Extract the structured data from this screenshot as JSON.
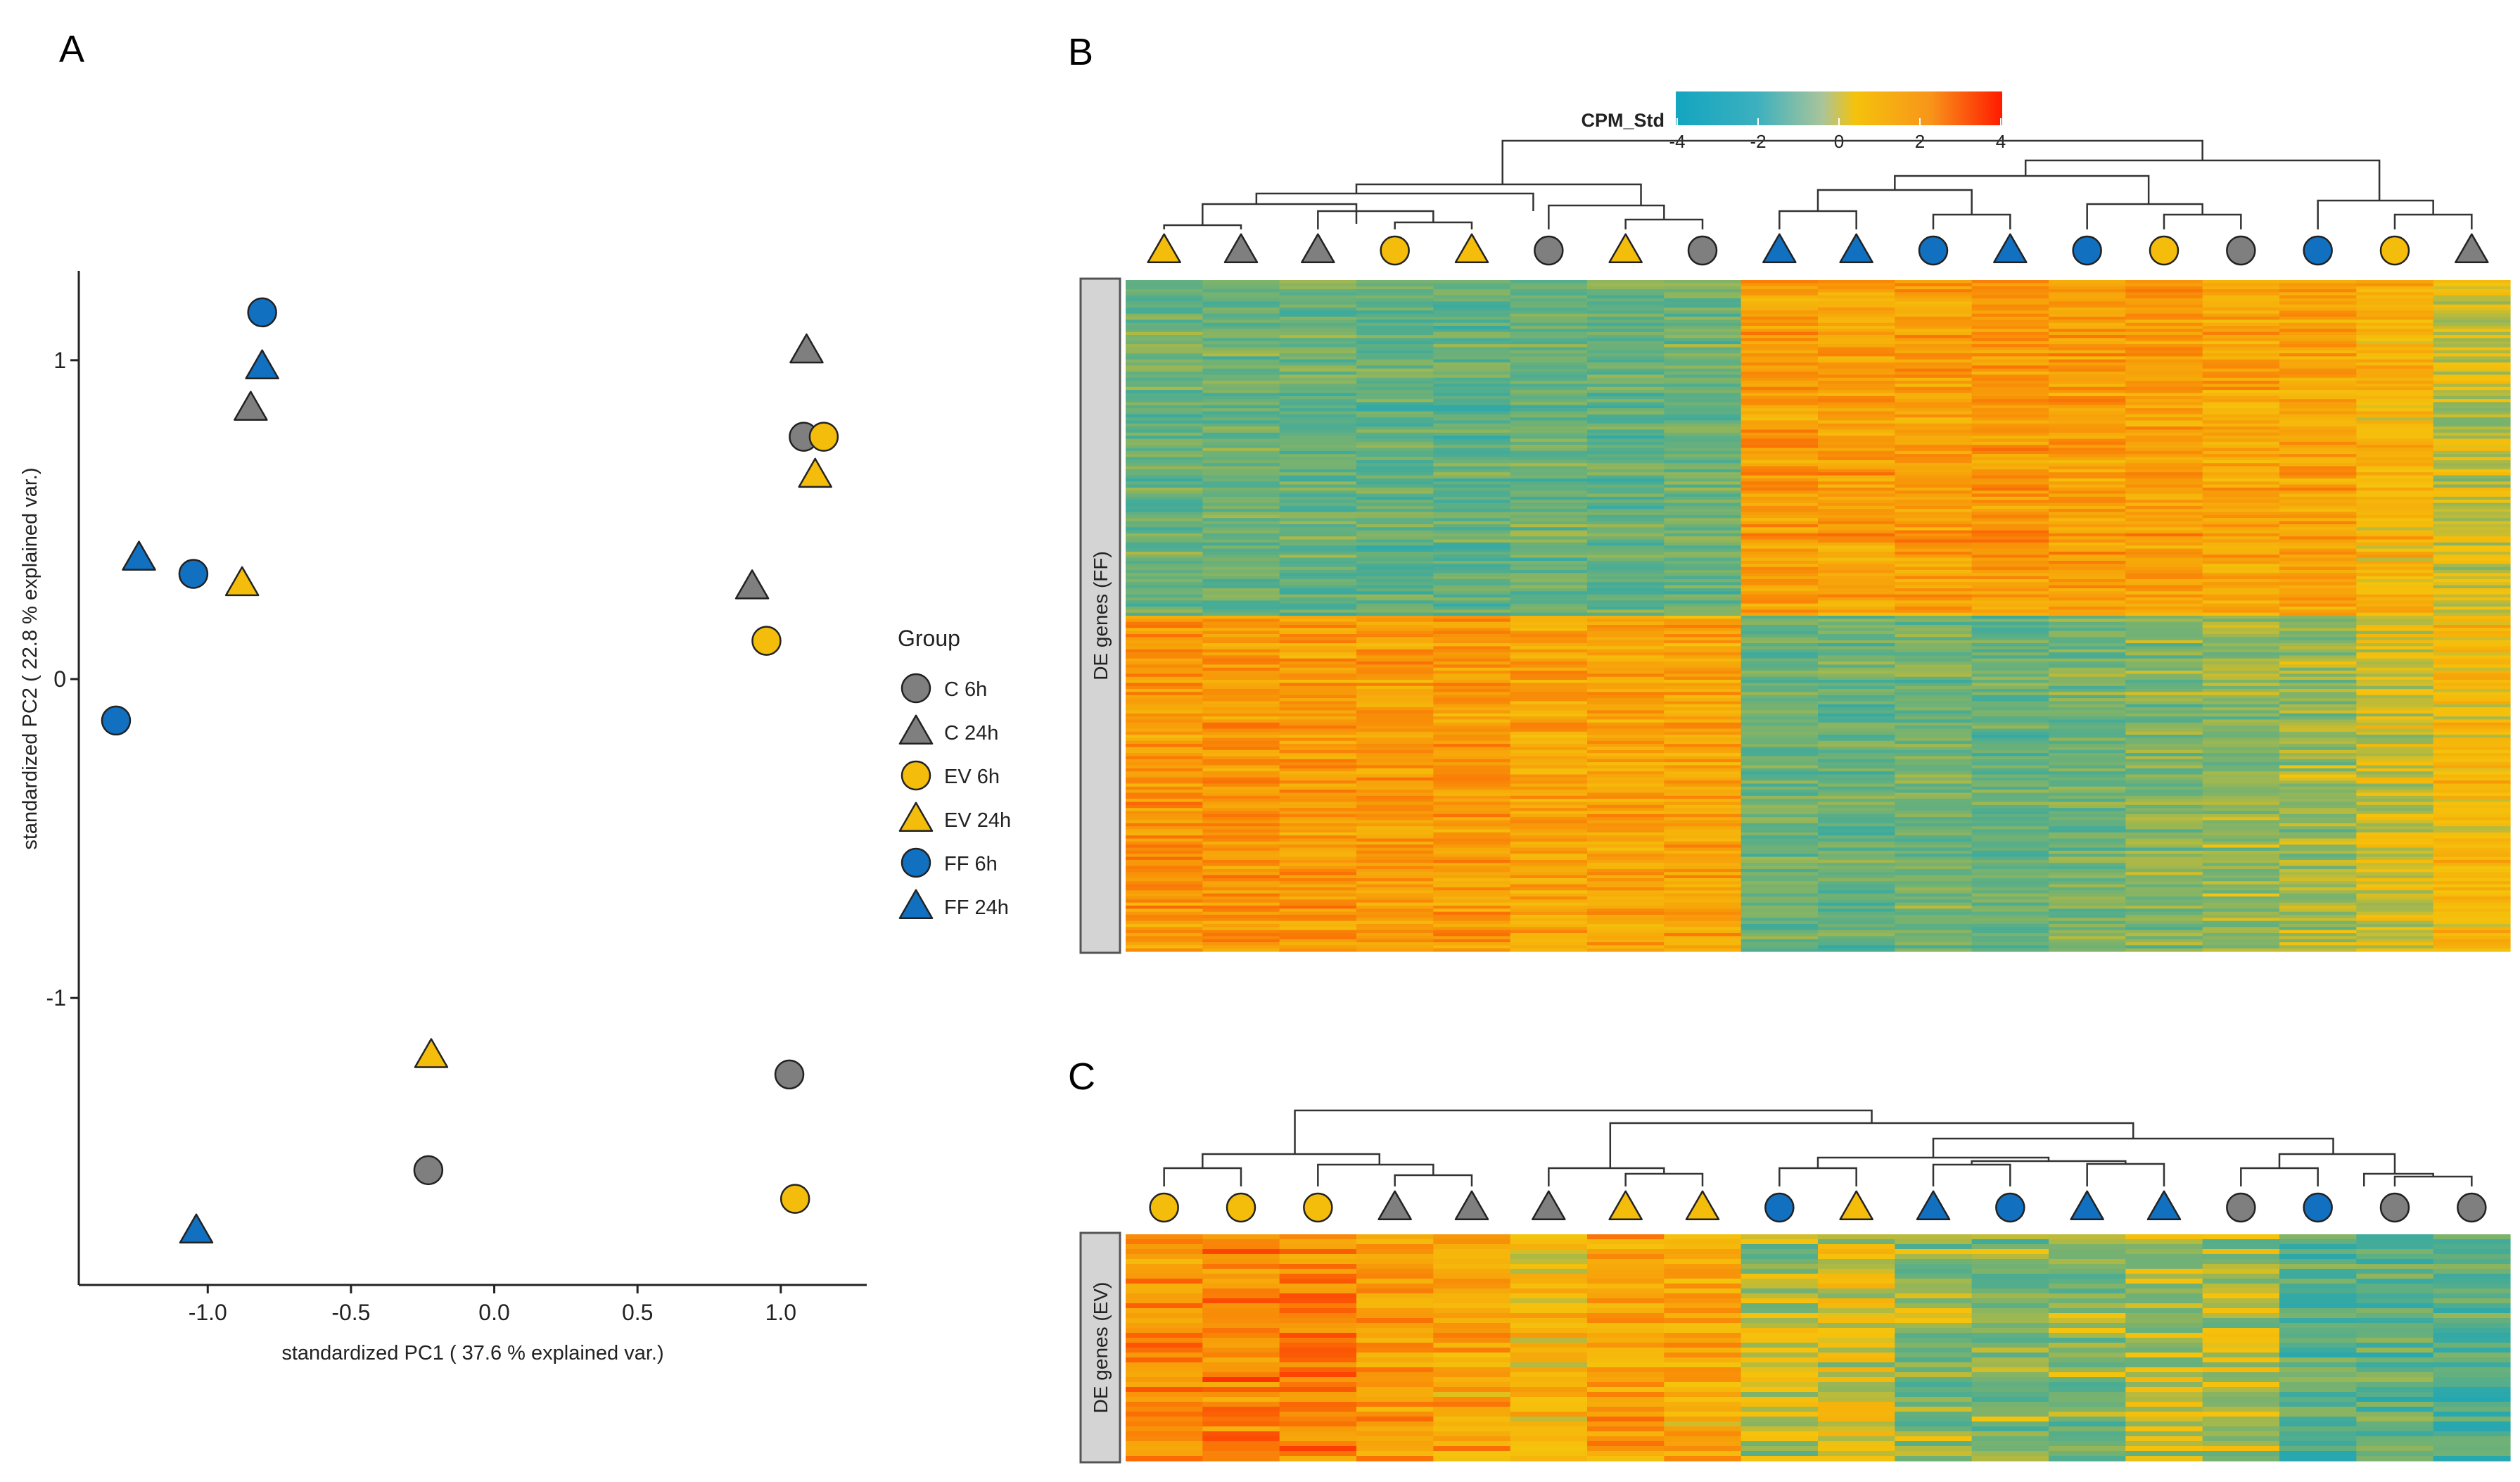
{
  "panels": {
    "a": "A",
    "b": "B",
    "c": "C"
  },
  "colors": {
    "C": "#7f7f7f",
    "EV": "#f5bd0b",
    "FF": "#1170c0",
    "outline": "#222222",
    "axis": "#222222",
    "heat_lo": "#13a5bf",
    "heat_mid": "#f5c20c",
    "heat_hi": "#ff1a00",
    "strip_bg": "#d4d4d4"
  },
  "chart_data": [
    {
      "type": "scatter",
      "xlabel": "standardized PC1 ( 37.6 % explained var.)",
      "ylabel": "standardized PC2 ( 22.8 % explained var.)",
      "xlim": [
        -1.45,
        1.3
      ],
      "ylim": [
        -1.9,
        1.28
      ],
      "xticks": [
        -1.0,
        -0.5,
        0.0,
        0.5,
        1.0
      ],
      "xtick_labels": [
        "-1.0",
        "-0.5",
        "0.0",
        "0.5",
        "1.0"
      ],
      "yticks": [
        1,
        0,
        -1
      ],
      "ytick_labels": [
        "1",
        "0",
        "-1"
      ],
      "legend": {
        "title": "Group",
        "position": "right",
        "entries": [
          {
            "label": "C 6h",
            "group": "C",
            "shape": "circle"
          },
          {
            "label": "C 24h",
            "group": "C",
            "shape": "triangle"
          },
          {
            "label": "EV 6h",
            "group": "EV",
            "shape": "circle"
          },
          {
            "label": "EV 24h",
            "group": "EV",
            "shape": "triangle"
          },
          {
            "label": "FF 6h",
            "group": "FF",
            "shape": "circle"
          },
          {
            "label": "FF 24h",
            "group": "FF",
            "shape": "triangle"
          }
        ]
      },
      "points": [
        {
          "x": -0.81,
          "y": 1.15,
          "group": "FF",
          "shape": "circle"
        },
        {
          "x": -0.81,
          "y": 0.98,
          "group": "FF",
          "shape": "triangle"
        },
        {
          "x": -0.85,
          "y": 0.85,
          "group": "C",
          "shape": "triangle"
        },
        {
          "x": -1.24,
          "y": 0.38,
          "group": "FF",
          "shape": "triangle"
        },
        {
          "x": -1.05,
          "y": 0.33,
          "group": "FF",
          "shape": "circle"
        },
        {
          "x": -0.88,
          "y": 0.3,
          "group": "EV",
          "shape": "triangle"
        },
        {
          "x": -1.32,
          "y": -0.13,
          "group": "FF",
          "shape": "circle"
        },
        {
          "x": 1.09,
          "y": 1.03,
          "group": "C",
          "shape": "triangle"
        },
        {
          "x": 1.08,
          "y": 0.76,
          "group": "C",
          "shape": "circle"
        },
        {
          "x": 1.15,
          "y": 0.76,
          "group": "EV",
          "shape": "circle"
        },
        {
          "x": 1.12,
          "y": 0.64,
          "group": "EV",
          "shape": "triangle"
        },
        {
          "x": 0.9,
          "y": 0.29,
          "group": "C",
          "shape": "triangle"
        },
        {
          "x": 0.95,
          "y": 0.12,
          "group": "EV",
          "shape": "circle"
        },
        {
          "x": -0.22,
          "y": -1.18,
          "group": "EV",
          "shape": "triangle"
        },
        {
          "x": -0.23,
          "y": -1.54,
          "group": "C",
          "shape": "circle"
        },
        {
          "x": -1.04,
          "y": -1.73,
          "group": "FF",
          "shape": "triangle"
        },
        {
          "x": 1.03,
          "y": -1.24,
          "group": "C",
          "shape": "circle"
        },
        {
          "x": 1.05,
          "y": -1.63,
          "group": "EV",
          "shape": "circle"
        }
      ]
    },
    {
      "type": "heatmap",
      "strip_label": "DE genes (FF)",
      "legend": {
        "title": "CPM_Std",
        "ticks": [
          "-4",
          "-2",
          "0",
          "2",
          "4"
        ],
        "range": [
          -4,
          4
        ]
      },
      "columns": [
        {
          "group": "EV",
          "shape": "triangle"
        },
        {
          "group": "C",
          "shape": "triangle"
        },
        {
          "group": "C",
          "shape": "triangle"
        },
        {
          "group": "EV",
          "shape": "circle"
        },
        {
          "group": "EV",
          "shape": "triangle"
        },
        {
          "group": "C",
          "shape": "circle"
        },
        {
          "group": "EV",
          "shape": "triangle"
        },
        {
          "group": "C",
          "shape": "circle"
        },
        {
          "group": "FF",
          "shape": "triangle"
        },
        {
          "group": "FF",
          "shape": "triangle"
        },
        {
          "group": "FF",
          "shape": "circle"
        },
        {
          "group": "FF",
          "shape": "triangle"
        },
        {
          "group": "FF",
          "shape": "circle"
        },
        {
          "group": "EV",
          "shape": "circle"
        },
        {
          "group": "C",
          "shape": "circle"
        },
        {
          "group": "FF",
          "shape": "circle"
        },
        {
          "group": "EV",
          "shape": "circle"
        },
        {
          "group": "C",
          "shape": "triangle"
        }
      ],
      "row_clusters": [
        {
          "share": 0.5,
          "column_means": [
            -1.5,
            -1.5,
            -1.6,
            -1.7,
            -1.7,
            -1.5,
            -1.6,
            -1.5,
            1.6,
            1.5,
            1.5,
            1.6,
            1.5,
            1.5,
            1.2,
            1.4,
            0.8,
            -0.2
          ]
        },
        {
          "share": 0.5,
          "column_means": [
            1.6,
            1.6,
            1.5,
            1.5,
            1.5,
            1.2,
            1.3,
            1.2,
            -1.6,
            -1.6,
            -1.5,
            -1.6,
            -1.4,
            -1.2,
            -1.0,
            -0.9,
            -0.2,
            0.6
          ]
        }
      ]
    },
    {
      "type": "heatmap",
      "strip_label": "DE genes (EV)",
      "legend_shared_with_panel": "B",
      "columns": [
        {
          "group": "EV",
          "shape": "circle"
        },
        {
          "group": "EV",
          "shape": "circle"
        },
        {
          "group": "EV",
          "shape": "circle"
        },
        {
          "group": "C",
          "shape": "triangle"
        },
        {
          "group": "C",
          "shape": "triangle"
        },
        {
          "group": "C",
          "shape": "triangle"
        },
        {
          "group": "EV",
          "shape": "triangle"
        },
        {
          "group": "EV",
          "shape": "triangle"
        },
        {
          "group": "FF",
          "shape": "circle"
        },
        {
          "group": "EV",
          "shape": "triangle"
        },
        {
          "group": "FF",
          "shape": "triangle"
        },
        {
          "group": "FF",
          "shape": "circle"
        },
        {
          "group": "FF",
          "shape": "triangle"
        },
        {
          "group": "FF",
          "shape": "triangle"
        },
        {
          "group": "C",
          "shape": "circle"
        },
        {
          "group": "FF",
          "shape": "circle"
        },
        {
          "group": "C",
          "shape": "circle"
        },
        {
          "group": "C",
          "shape": "circle"
        }
      ],
      "row_clusters": [
        {
          "share": 1.0,
          "column_means": [
            2.0,
            2.1,
            2.2,
            1.6,
            1.3,
            0.6,
            1.5,
            1.2,
            -0.6,
            -0.1,
            -1.0,
            -1.2,
            -1.1,
            -0.6,
            -0.6,
            -1.8,
            -1.8,
            -2.0
          ]
        }
      ]
    }
  ]
}
